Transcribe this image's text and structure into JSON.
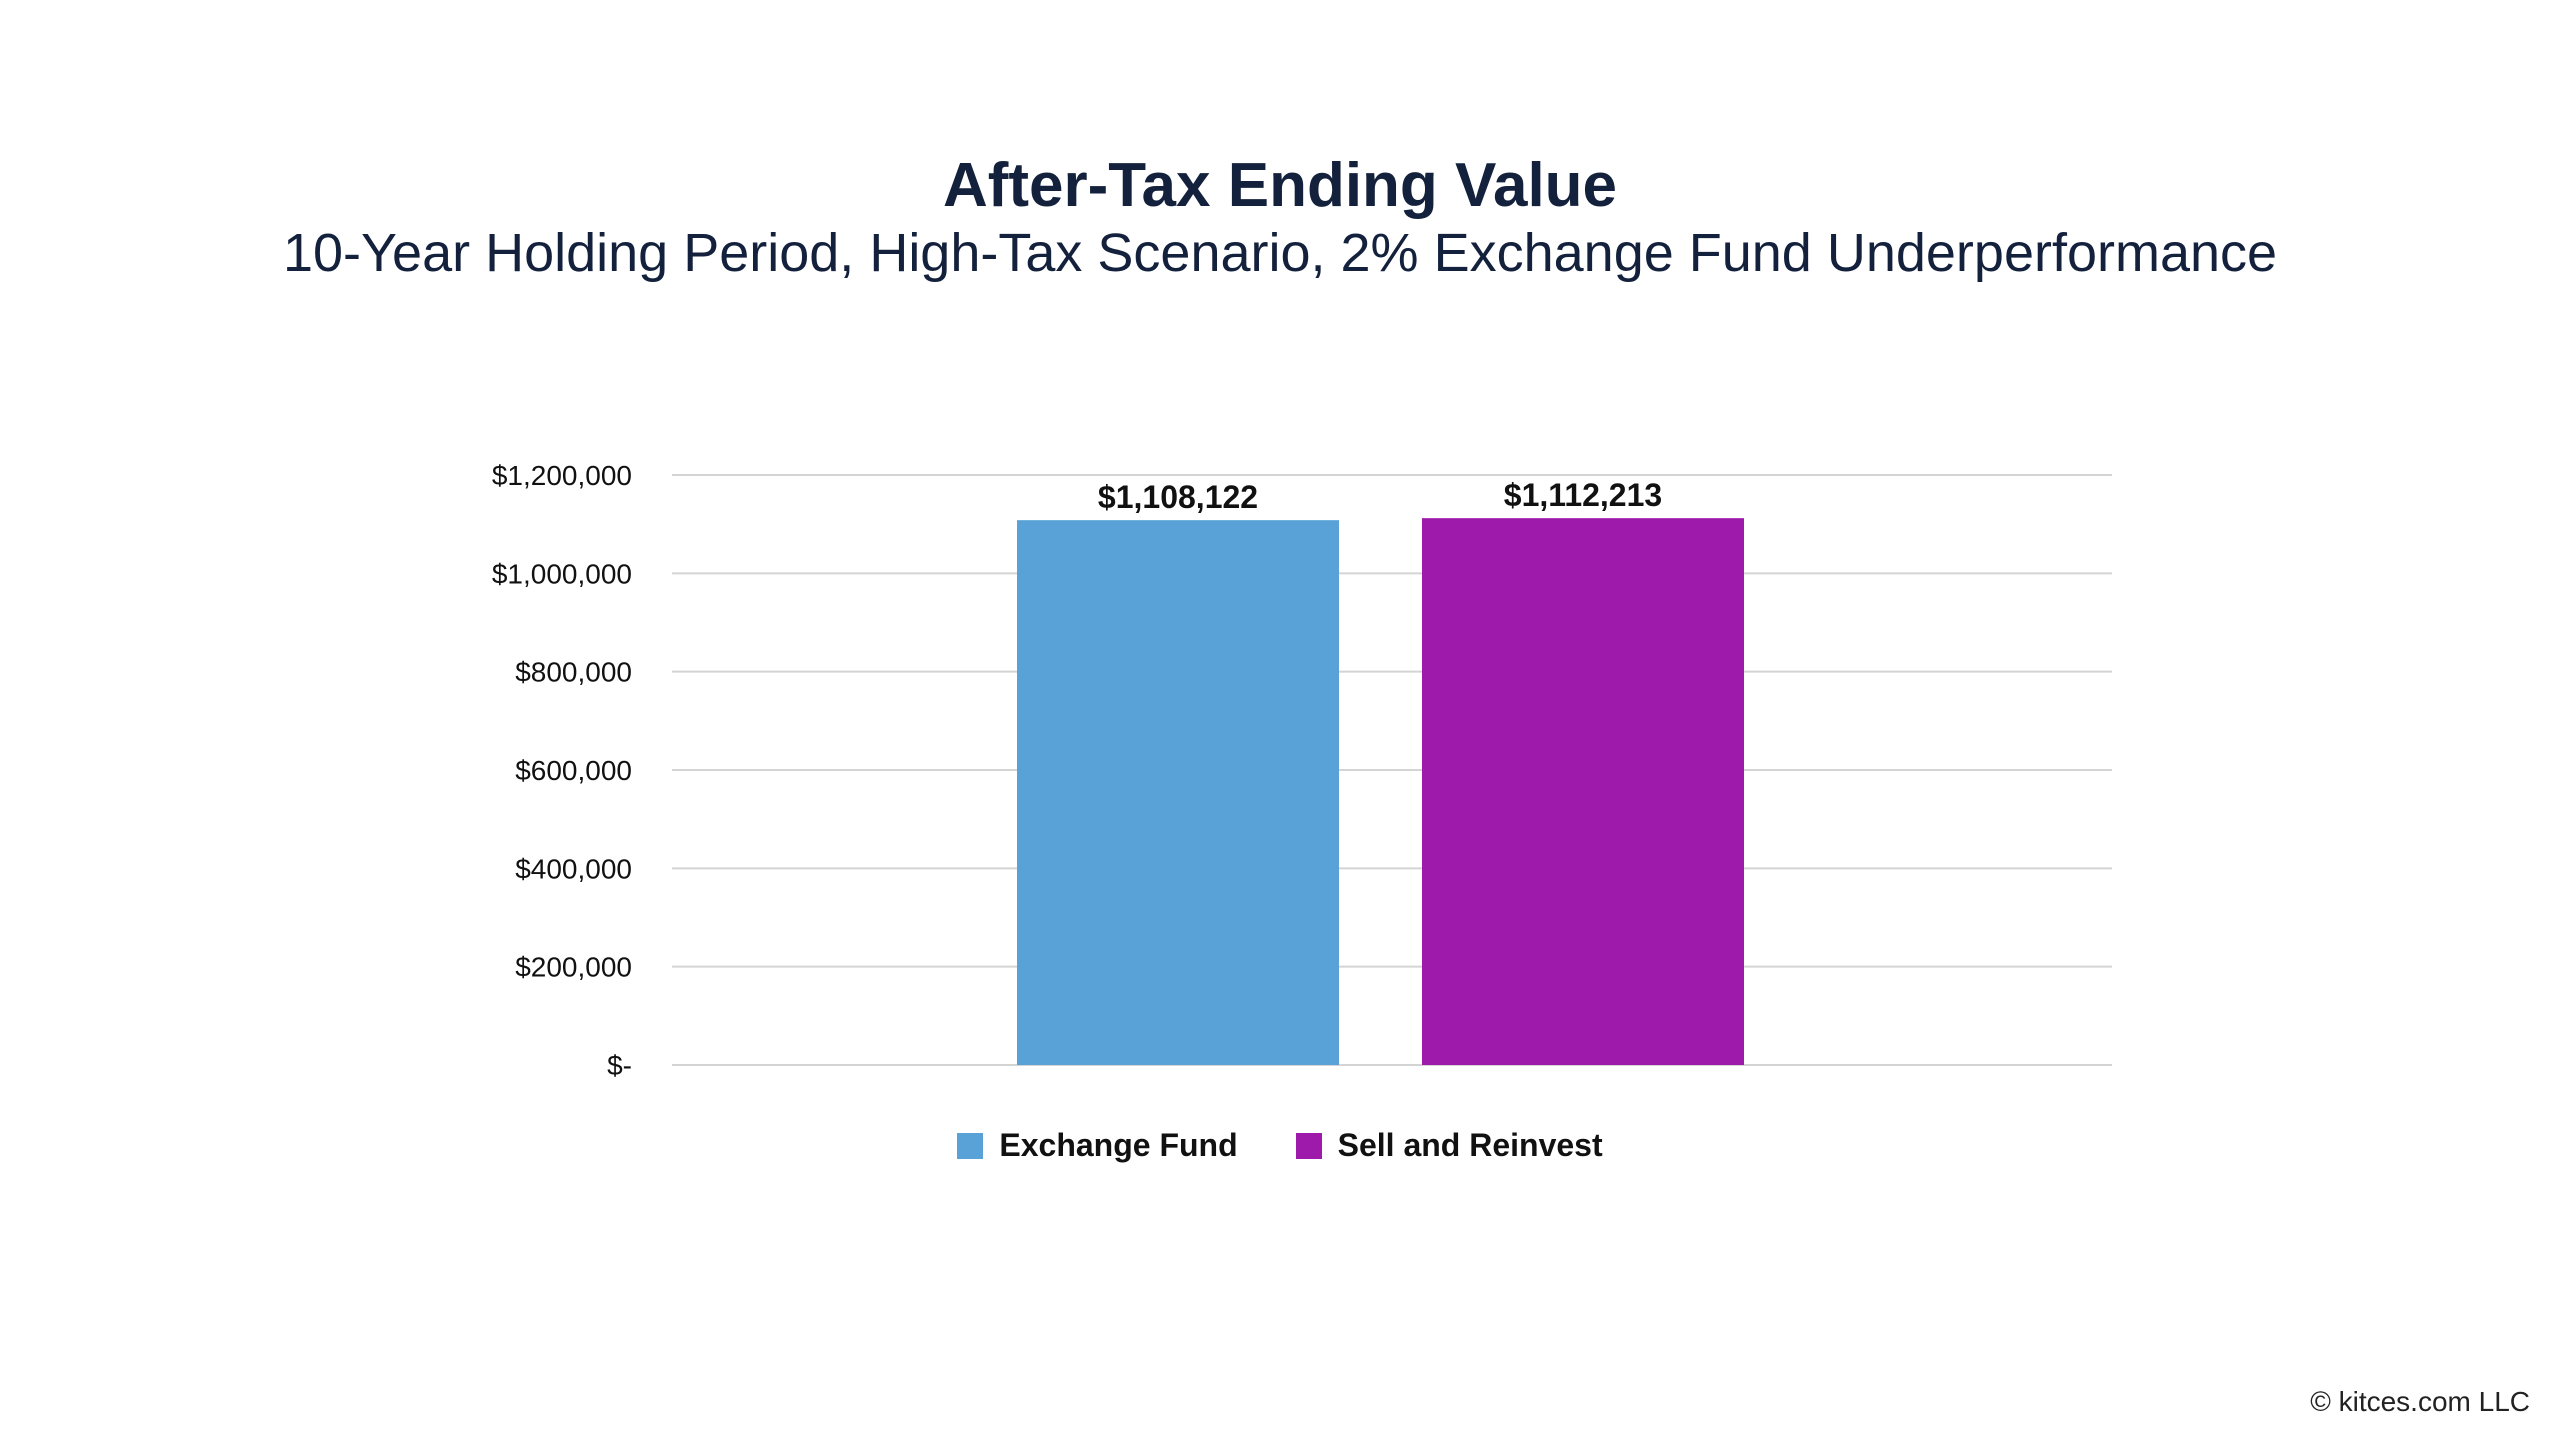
{
  "chart_data": {
    "type": "bar",
    "title": "After-Tax Ending Value",
    "subtitle": "10-Year Holding Period, High-Tax Scenario, 2% Exchange Fund Underperformance",
    "xlabel": "",
    "ylabel": "",
    "ylim": [
      0,
      1200000
    ],
    "yticks": [
      0,
      200000,
      400000,
      600000,
      800000,
      1000000,
      1200000
    ],
    "ytick_labels": [
      "$-",
      "$200,000",
      "$400,000",
      "$600,000",
      "$800,000",
      "$1,000,000",
      "$1,200,000"
    ],
    "grid": true,
    "legend_position": "bottom",
    "series": [
      {
        "name": "Exchange Fund",
        "value": 1108122,
        "label": "$1,108,122",
        "color": "#58a2d8"
      },
      {
        "name": "Sell and Reinvest",
        "value": 1112213,
        "label": "$1,112,213",
        "color": "#9d1aab"
      }
    ]
  },
  "footer": {
    "copyright": "© kitces.com LLC"
  }
}
